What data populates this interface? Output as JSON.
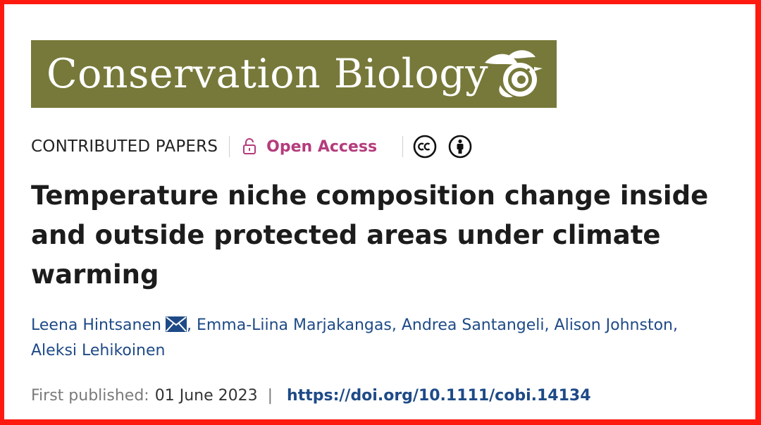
{
  "journal": {
    "name": "Conservation Biology",
    "logo_icon": "bird-logo-icon",
    "banner_color": "#77793a"
  },
  "meta": {
    "category": "CONTRIBUTED PAPERS",
    "access_label": "Open Access",
    "access_icon": "lock-open-icon",
    "license_icons": [
      "cc-icon",
      "attribution-icon"
    ],
    "access_color": "#b43c7c"
  },
  "article": {
    "title": "Temperature niche composition change inside and outside protected areas under climate warming"
  },
  "authors": [
    {
      "name": "Leena Hintsanen",
      "corresponding": true
    },
    {
      "name": "Emma-Liina Marjakangas"
    },
    {
      "name": "Andrea Santangeli"
    },
    {
      "name": "Alison Johnston"
    },
    {
      "name": "Aleksi Lehikoinen"
    }
  ],
  "publication": {
    "label": "First published:",
    "date": "01 June 2023",
    "separator": "|",
    "doi": "https://doi.org/10.1111/cobi.14134"
  },
  "colors": {
    "link": "#1e4a87",
    "frame_border": "#ff1a10"
  }
}
